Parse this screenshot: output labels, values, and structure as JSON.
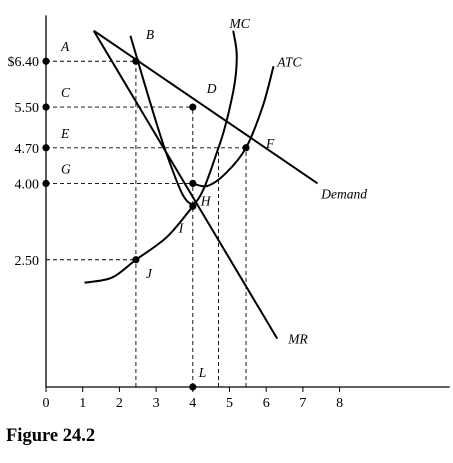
{
  "figure_caption": "Figure 24.2",
  "chart_data": {
    "type": "line",
    "title": "",
    "xlabel": "",
    "ylabel": "",
    "xlim": [
      0,
      11
    ],
    "ylim": [
      0,
      7.3
    ],
    "grid": false,
    "x_ticks": [
      0,
      1,
      2,
      3,
      4,
      5,
      6,
      7,
      8
    ],
    "y_ticks": [
      {
        "value": 6.4,
        "label": "$6.40",
        "letter": "A"
      },
      {
        "value": 5.5,
        "label": "5.50",
        "letter": "C"
      },
      {
        "value": 4.7,
        "label": "4.70",
        "letter": "E"
      },
      {
        "value": 4.0,
        "label": "4.00",
        "letter": "G"
      },
      {
        "value": 2.5,
        "label": "2.50",
        "letter": ""
      }
    ],
    "series": [
      {
        "name": "Demand",
        "type": "line",
        "x": [
          1.3,
          7.4
        ],
        "y": [
          7.0,
          4.0
        ],
        "label_at": [
          7.5,
          3.7
        ]
      },
      {
        "name": "MR",
        "type": "line",
        "x": [
          1.3,
          6.3
        ],
        "y": [
          7.0,
          0.95
        ],
        "label_at": [
          6.6,
          0.85
        ]
      },
      {
        "name": "MC",
        "type": "curve",
        "x": [
          2.3,
          3.3,
          4.0,
          4.7,
          5.1,
          5.2,
          5.1
        ],
        "y": [
          6.9,
          4.55,
          3.6,
          4.7,
          5.8,
          6.5,
          7.0
        ],
        "label_at": [
          5.0,
          7.05
        ]
      },
      {
        "name": "ATC",
        "type": "curve",
        "x": [
          4.0,
          4.4,
          4.9,
          5.45,
          5.9,
          6.2
        ],
        "y": [
          4.0,
          3.95,
          4.2,
          4.7,
          5.5,
          6.3
        ],
        "label_at": [
          6.3,
          6.3
        ]
      }
    ],
    "points": [
      {
        "label": "A",
        "x": 0,
        "y": 6.4
      },
      {
        "label": "B",
        "x": 2.45,
        "y": 6.4
      },
      {
        "label": "C",
        "x": 0,
        "y": 5.5
      },
      {
        "label": "D",
        "x": 4.0,
        "y": 5.5
      },
      {
        "label": "E",
        "x": 0,
        "y": 4.7
      },
      {
        "label": "F",
        "x": 5.45,
        "y": 4.7
      },
      {
        "label": "G",
        "x": 0,
        "y": 4.0
      },
      {
        "label": "H",
        "x": 4.0,
        "y": 4.0
      },
      {
        "label": "I",
        "x": 4.0,
        "y": 3.55
      },
      {
        "label": "J",
        "x": 2.45,
        "y": 2.5
      },
      {
        "label": "L",
        "x": 4.0,
        "y": 0
      }
    ]
  }
}
